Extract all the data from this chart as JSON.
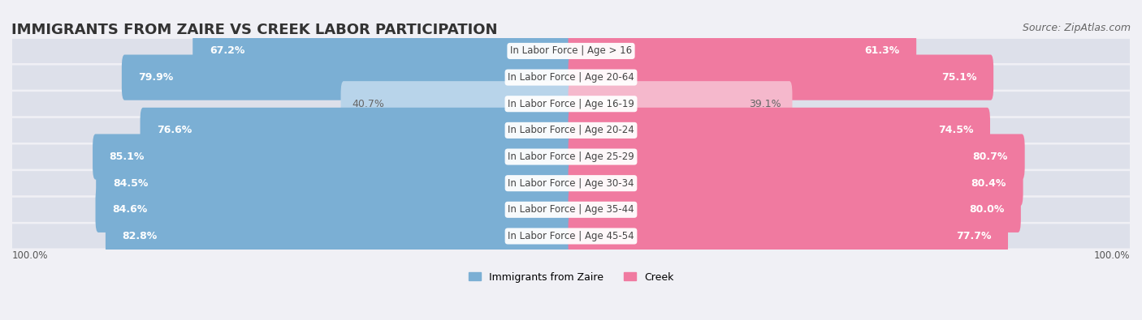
{
  "title": "IMMIGRANTS FROM ZAIRE VS CREEK LABOR PARTICIPATION",
  "source": "Source: ZipAtlas.com",
  "categories": [
    "In Labor Force | Age > 16",
    "In Labor Force | Age 20-64",
    "In Labor Force | Age 16-19",
    "In Labor Force | Age 20-24",
    "In Labor Force | Age 25-29",
    "In Labor Force | Age 30-34",
    "In Labor Force | Age 35-44",
    "In Labor Force | Age 45-54"
  ],
  "zaire_values": [
    67.2,
    79.9,
    40.7,
    76.6,
    85.1,
    84.5,
    84.6,
    82.8
  ],
  "creek_values": [
    61.3,
    75.1,
    39.1,
    74.5,
    80.7,
    80.4,
    80.0,
    77.7
  ],
  "zaire_color": "#7bafd4",
  "zaire_color_light": "#b8d4ea",
  "creek_color": "#f07aa0",
  "creek_color_light": "#f5b8cc",
  "label_color_dark": "#555555",
  "label_color_white": "#ffffff",
  "bg_color": "#f0f0f5",
  "row_bg_color": "#e8e8f0",
  "max_value": 100.0,
  "legend_zaire": "Immigrants from Zaire",
  "legend_creek": "Creek",
  "title_fontsize": 13,
  "source_fontsize": 9,
  "bar_label_fontsize": 9,
  "category_fontsize": 8.5,
  "legend_fontsize": 9
}
